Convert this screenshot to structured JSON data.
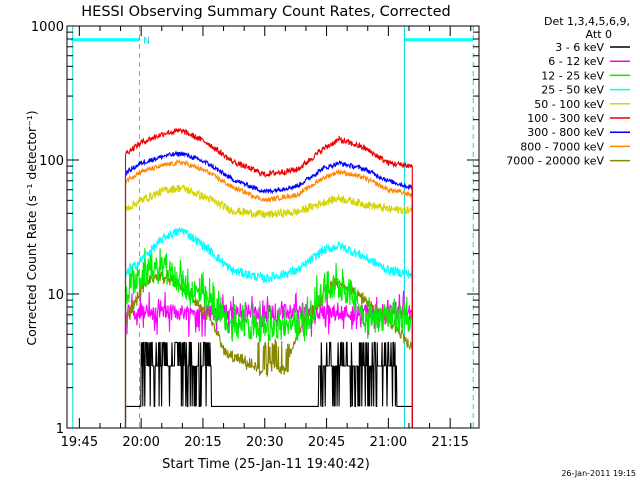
{
  "chart_data": {
    "type": "line",
    "title": "HESSI Observing Summary Count Rates, Corrected",
    "xlabel": "Start Time (25-Jan-11 19:40:42)",
    "ylabel": "Corrected Count Rate (s⁻¹ detector⁻¹)",
    "yscale": "log",
    "ylim": [
      1,
      1000
    ],
    "xlim_min": [
      -18,
      82
    ],
    "x_unit": "minutes after 20:00 UT",
    "x_ticks": [
      "19:45",
      "20:00",
      "20:15",
      "20:30",
      "20:45",
      "21:00",
      "21:15"
    ],
    "y_ticks": [
      "1",
      "10",
      "100",
      "1000"
    ],
    "legend_header": [
      "Det 1,3,4,5,6,9,",
      "Att 0"
    ],
    "legend_position": "outside-right",
    "timestamp": "26-Jan-2011 19:15",
    "annotations": [
      {
        "text": "N",
        "x_min": 0.5,
        "y": 790,
        "color": "#00e0e0"
      }
    ],
    "night_periods": [
      {
        "start_min": -17,
        "end_min": -0.3
      },
      {
        "start_min": 63.8,
        "end_min": 80.6
      }
    ],
    "vertical_lines": [
      {
        "x_min": -16.6,
        "style": "solid"
      },
      {
        "x_min": -0.4,
        "style": "dashed"
      },
      {
        "x_min": 63.9,
        "style": "solid"
      },
      {
        "x_min": 80.6,
        "style": "dashed"
      }
    ],
    "data_window": {
      "start_min": -3.8,
      "end_min": 65.8
    },
    "series": [
      {
        "name": "3 - 6 keV",
        "color": "#000000",
        "profile": "black",
        "noise": 0
      },
      {
        "name": "6 - 12 keV",
        "color": "#ff00ff",
        "profile": "magenta",
        "noise": 0.07
      },
      {
        "name": "12 - 25 keV",
        "color": "#00ee00",
        "profile": "green",
        "noise": 0.12
      },
      {
        "name": "25 - 50 keV",
        "color": "#00ffff",
        "noise": 0.04,
        "points": [
          [
            -3.8,
            14
          ],
          [
            0,
            18
          ],
          [
            6,
            27
          ],
          [
            10,
            30
          ],
          [
            16,
            22
          ],
          [
            22,
            15
          ],
          [
            30,
            13
          ],
          [
            38,
            15
          ],
          [
            44,
            21
          ],
          [
            48,
            23
          ],
          [
            54,
            19
          ],
          [
            60,
            15
          ],
          [
            65.8,
            14
          ]
        ]
      },
      {
        "name": "50 - 100 keV",
        "color": "#d4d400",
        "noise": 0.035,
        "points": [
          [
            -3.8,
            43
          ],
          [
            0,
            50
          ],
          [
            6,
            60
          ],
          [
            10,
            62
          ],
          [
            16,
            52
          ],
          [
            22,
            42
          ],
          [
            30,
            39
          ],
          [
            38,
            41
          ],
          [
            44,
            48
          ],
          [
            48,
            52
          ],
          [
            54,
            47
          ],
          [
            60,
            43
          ],
          [
            65.8,
            42
          ]
        ]
      },
      {
        "name": "100 - 300 keV",
        "color": "#ee0000",
        "noise": 0.025,
        "points": [
          [
            -3.8,
            112
          ],
          [
            0,
            135
          ],
          [
            6,
            160
          ],
          [
            10,
            165
          ],
          [
            16,
            135
          ],
          [
            22,
            98
          ],
          [
            30,
            78
          ],
          [
            38,
            85
          ],
          [
            44,
            120
          ],
          [
            48,
            142
          ],
          [
            54,
            124
          ],
          [
            60,
            95
          ],
          [
            65.8,
            90
          ]
        ]
      },
      {
        "name": "300 - 800 keV",
        "color": "#0000ff",
        "noise": 0.02,
        "points": [
          [
            -3.8,
            80
          ],
          [
            0,
            95
          ],
          [
            6,
            108
          ],
          [
            10,
            112
          ],
          [
            16,
            95
          ],
          [
            22,
            72
          ],
          [
            30,
            58
          ],
          [
            38,
            64
          ],
          [
            44,
            86
          ],
          [
            48,
            95
          ],
          [
            54,
            86
          ],
          [
            60,
            70
          ],
          [
            65.8,
            62
          ]
        ]
      },
      {
        "name": "800 - 7000 keV",
        "color": "#ff8800",
        "noise": 0.02,
        "points": [
          [
            -3.8,
            70
          ],
          [
            0,
            82
          ],
          [
            6,
            92
          ],
          [
            10,
            96
          ],
          [
            16,
            82
          ],
          [
            22,
            63
          ],
          [
            30,
            50
          ],
          [
            38,
            55
          ],
          [
            44,
            73
          ],
          [
            48,
            82
          ],
          [
            54,
            74
          ],
          [
            60,
            60
          ],
          [
            65.8,
            55
          ]
        ]
      },
      {
        "name": "7000 - 20000 keV",
        "color": "#888800",
        "profile": "olive",
        "noise": 0.04
      }
    ]
  }
}
